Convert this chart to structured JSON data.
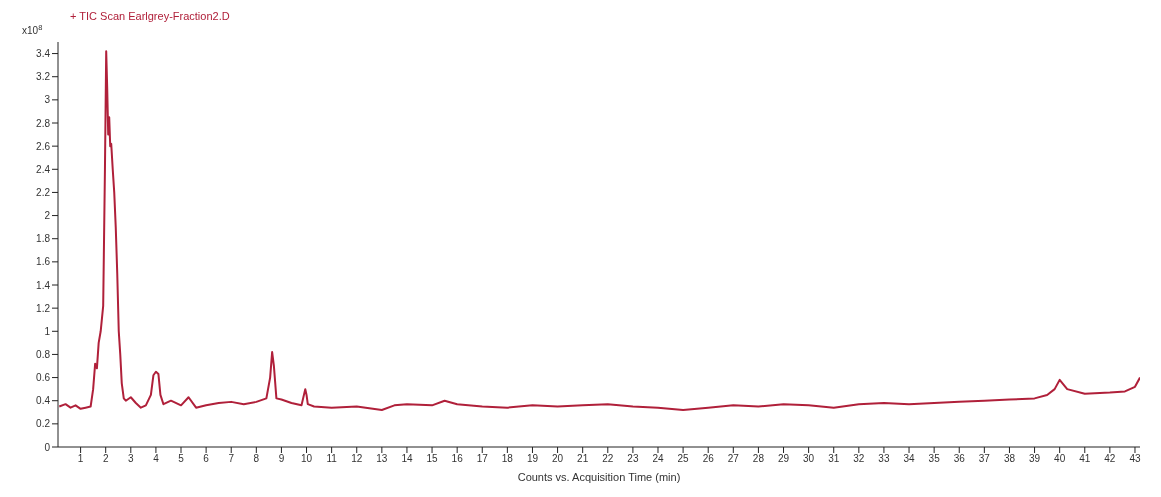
{
  "chart_data": {
    "type": "line",
    "ylabel": "x10$^{8}$",
    "xlabel": "Counts vs. Acquisition Time (min)",
    "xlim": [
      0.1,
      43.2
    ],
    "xticks": [
      1,
      2,
      3,
      4,
      5,
      6,
      7,
      8,
      9,
      10,
      11,
      12,
      13,
      14,
      15,
      16,
      17,
      18,
      19,
      20,
      21,
      22,
      23,
      24,
      25,
      26,
      27,
      28,
      29,
      30,
      31,
      32,
      33,
      34,
      35,
      36,
      37,
      38,
      39,
      40,
      41,
      42,
      43
    ],
    "ylim": [
      0,
      3.5
    ],
    "yticks": [
      0,
      0.2,
      0.4,
      0.6,
      0.8,
      1,
      1.2,
      1.4,
      1.6,
      1.8,
      2,
      2.2,
      2.4,
      2.6,
      2.8,
      3,
      3.2,
      3.4
    ],
    "grid": false,
    "legend": "top left",
    "marker": "none",
    "line_style": "solid",
    "series": [
      {
        "name": "+ TIC Scan Earlgrey-Fraction2.D",
        "color": "#b0203a",
        "x": [
          0.15,
          0.4,
          0.6,
          0.8,
          1.0,
          1.2,
          1.4,
          1.5,
          1.58,
          1.65,
          1.72,
          1.8,
          1.9,
          1.97,
          2.02,
          2.06,
          2.1,
          2.14,
          2.18,
          2.22,
          2.28,
          2.34,
          2.4,
          2.46,
          2.52,
          2.58,
          2.64,
          2.72,
          2.8,
          3.0,
          3.2,
          3.4,
          3.6,
          3.8,
          3.9,
          4.0,
          4.1,
          4.18,
          4.3,
          4.6,
          5.0,
          5.3,
          5.6,
          6.0,
          6.5,
          7.0,
          7.5,
          8.0,
          8.4,
          8.55,
          8.63,
          8.7,
          8.8,
          9.0,
          9.4,
          9.8,
          9.95,
          10.0,
          10.05,
          10.3,
          11,
          12,
          13,
          13.5,
          14,
          15,
          15.5,
          16,
          17,
          18,
          19,
          20,
          21,
          22,
          23,
          24,
          25,
          26,
          27,
          28,
          29,
          30,
          31,
          32,
          33,
          34,
          35,
          36,
          37,
          38,
          39,
          39.5,
          39.8,
          40.0,
          40.3,
          41,
          42,
          42.6,
          43.0,
          43.2
        ],
        "values": [
          0.35,
          0.37,
          0.34,
          0.36,
          0.33,
          0.34,
          0.35,
          0.5,
          0.72,
          0.68,
          0.9,
          1.0,
          1.22,
          2.4,
          3.42,
          3.1,
          2.7,
          2.85,
          2.6,
          2.62,
          2.4,
          2.2,
          1.9,
          1.5,
          1.0,
          0.8,
          0.55,
          0.42,
          0.4,
          0.43,
          0.38,
          0.34,
          0.36,
          0.45,
          0.62,
          0.65,
          0.63,
          0.45,
          0.37,
          0.4,
          0.36,
          0.43,
          0.34,
          0.36,
          0.38,
          0.39,
          0.37,
          0.39,
          0.42,
          0.6,
          0.82,
          0.7,
          0.42,
          0.41,
          0.38,
          0.36,
          0.5,
          0.45,
          0.37,
          0.35,
          0.34,
          0.35,
          0.32,
          0.36,
          0.37,
          0.36,
          0.4,
          0.37,
          0.35,
          0.34,
          0.36,
          0.35,
          0.36,
          0.37,
          0.35,
          0.34,
          0.32,
          0.34,
          0.36,
          0.35,
          0.37,
          0.36,
          0.34,
          0.37,
          0.38,
          0.37,
          0.38,
          0.39,
          0.4,
          0.41,
          0.42,
          0.45,
          0.5,
          0.58,
          0.5,
          0.46,
          0.47,
          0.48,
          0.52,
          0.6
        ]
      }
    ]
  }
}
